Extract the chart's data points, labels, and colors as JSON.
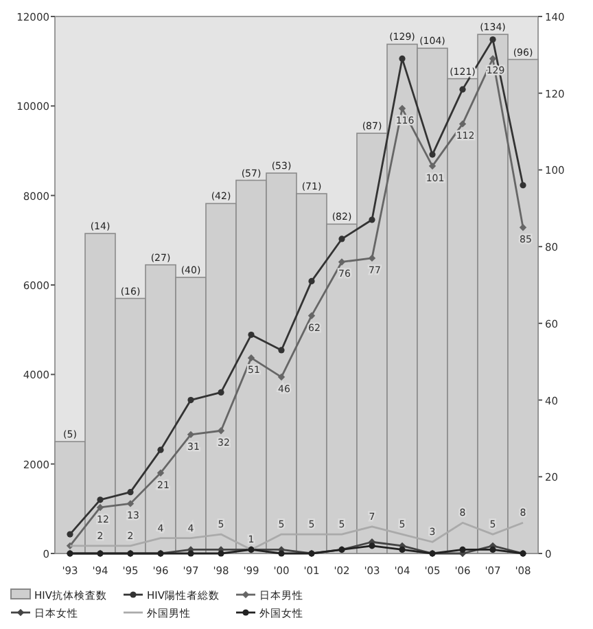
{
  "chart_data": {
    "type": "bar",
    "categories": [
      "'93",
      "'94",
      "'95",
      "'96",
      "'97",
      "'98",
      "'99",
      "'00",
      "'01",
      "'02",
      "'03",
      "'04",
      "'05",
      "'06",
      "'07",
      "'08"
    ],
    "ylim": [
      0,
      12000
    ],
    "yticks": [
      0,
      2000,
      4000,
      6000,
      8000,
      10000,
      12000
    ],
    "y2lim": [
      0,
      140
    ],
    "y2ticks": [
      0,
      20,
      40,
      60,
      80,
      100,
      120,
      140
    ],
    "legend": "bottom",
    "series": [
      {
        "name": "HIV抗体検査数",
        "color": "#cfcfcf",
        "values": [
          2500,
          7150,
          5700,
          6450,
          6170,
          7820,
          8340,
          8500,
          8040,
          7360,
          9390,
          11380,
          11290,
          10610,
          11600,
          11040
        ]
      },
      {
        "name": "HIV陽性者総数",
        "type": "line",
        "axis": "y2",
        "color": "#333333",
        "marker": "circle",
        "values": [
          5,
          14,
          16,
          27,
          40,
          42,
          57,
          53,
          71,
          82,
          87,
          129,
          104,
          121,
          134,
          96
        ]
      },
      {
        "name": "日本男性",
        "type": "line",
        "axis": "y2",
        "color": "#666666",
        "marker": "diamond",
        "values": [
          2,
          12,
          13,
          21,
          31,
          32,
          51,
          46,
          62,
          76,
          77,
          116,
          101,
          112,
          129,
          85
        ],
        "value_labels": [
          null,
          "12",
          "13",
          "21",
          "31",
          "32",
          "51",
          "46",
          "62",
          "76",
          "77",
          "116",
          "101",
          "112",
          "129",
          "85"
        ]
      },
      {
        "name": "日本女性",
        "type": "line",
        "axis": "y2",
        "color": "#444444",
        "marker": "diamond",
        "values": [
          0,
          0,
          0,
          0,
          1,
          1,
          1,
          1,
          0,
          1,
          3,
          2,
          0,
          0,
          2,
          0
        ]
      },
      {
        "name": "外国男性",
        "type": "line",
        "axis": "y2",
        "color": "#aaaaaa",
        "marker": "none",
        "values": [
          2,
          2,
          2,
          4,
          4,
          5,
          1,
          5,
          5,
          5,
          7,
          5,
          3,
          8,
          5,
          8
        ],
        "value_labels": [
          null,
          "2",
          "2",
          "4",
          "4",
          "5",
          "1",
          "5",
          "5",
          "5",
          "7",
          "5",
          "3",
          "8",
          "5",
          "8"
        ]
      },
      {
        "name": "外国女性",
        "type": "line",
        "axis": "y2",
        "color": "#222222",
        "marker": "circle",
        "values": [
          0,
          0,
          0,
          0,
          0,
          0,
          1,
          0,
          0,
          1,
          2,
          1,
          0,
          1,
          1,
          0
        ]
      }
    ],
    "annotations": [
      {
        "text": "(5)",
        "x": "'93",
        "y": 2500
      },
      {
        "text": "(14)",
        "x": "'94",
        "y": 7150
      },
      {
        "text": "(16)",
        "x": "'95",
        "y": 5700
      },
      {
        "text": "(27)",
        "x": "'96",
        "y": 6450
      },
      {
        "text": "(40)",
        "x": "'97",
        "y": 6170
      },
      {
        "text": "(42)",
        "x": "'98",
        "y": 7820
      },
      {
        "text": "(57)",
        "x": "'99",
        "y": 8340
      },
      {
        "text": "(53)",
        "x": "'00",
        "y": 8500
      },
      {
        "text": "(71)",
        "x": "'01",
        "y": 8040
      },
      {
        "text": "(82)",
        "x": "'02",
        "y": 7360
      },
      {
        "text": "(87)",
        "x": "'03",
        "y": 9390
      },
      {
        "text": "(129)",
        "x": "'04",
        "y": 11380
      },
      {
        "text": "(104)",
        "x": "'05",
        "y": 11290
      },
      {
        "text": "(121)",
        "x": "'06",
        "y": 10610
      },
      {
        "text": "(134)",
        "x": "'07",
        "y": 11600
      },
      {
        "text": "(96)",
        "x": "'08",
        "y": 11040
      }
    ]
  }
}
